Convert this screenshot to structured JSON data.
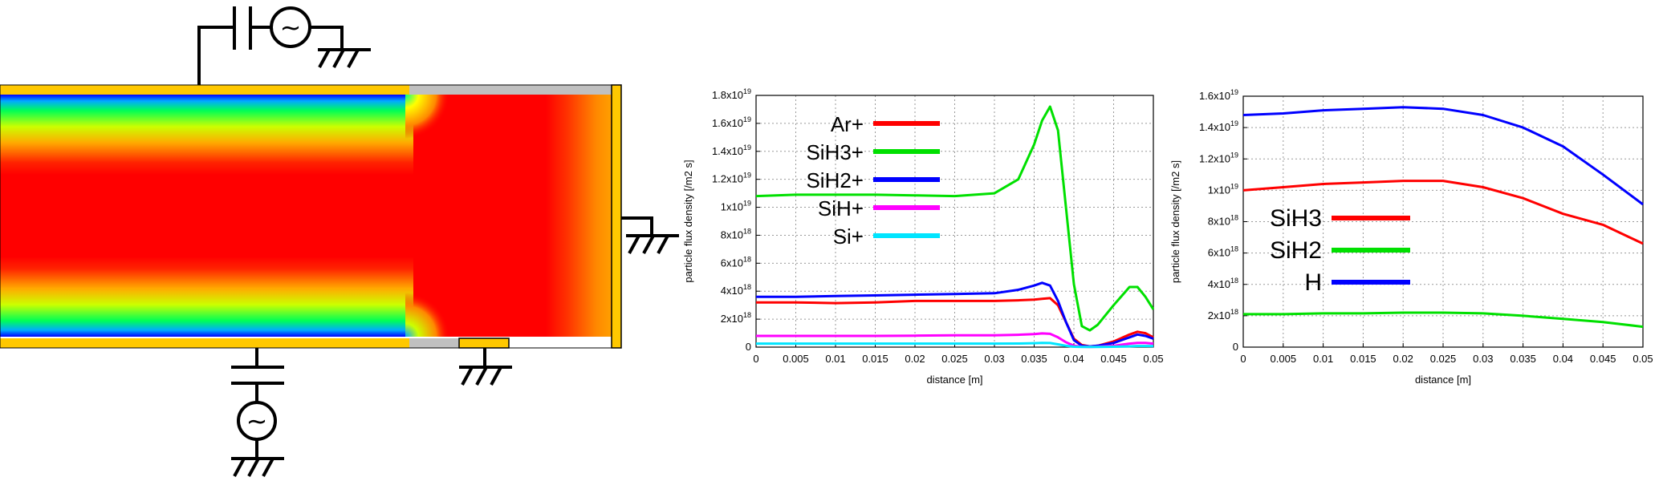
{
  "colors": {
    "electrode": "#FFC800",
    "insulator": "#C0C0C0",
    "plasma_core": "#FF0000",
    "wire": "#000000"
  },
  "schematic": {
    "components": [
      "capacitor",
      "ac-source",
      "ground-symbol"
    ],
    "source_glyph": "~"
  },
  "chart_data": [
    {
      "type": "line",
      "xlabel": "distance [m]",
      "ylabel": "particle flux density [/m2 s]",
      "xlim": [
        0,
        0.05
      ],
      "ylim": [
        0,
        1.8e+19
      ],
      "xticks": [
        "0",
        "0.005",
        "0.01",
        "0.015",
        "0.02",
        "0.025",
        "0.03",
        "0.035",
        "0.04",
        "0.045",
        "0.05"
      ],
      "yticks": [
        {
          "mant": "0",
          "exp": ""
        },
        {
          "mant": "2x10",
          "exp": "18"
        },
        {
          "mant": "4x10",
          "exp": "18"
        },
        {
          "mant": "6x10",
          "exp": "18"
        },
        {
          "mant": "8x10",
          "exp": "18"
        },
        {
          "mant": "1x10",
          "exp": "19"
        },
        {
          "mant": "1.2x10",
          "exp": "19"
        },
        {
          "mant": "1.4x10",
          "exp": "19"
        },
        {
          "mant": "1.6x10",
          "exp": "19"
        },
        {
          "mant": "1.8x10",
          "exp": "19"
        }
      ],
      "grid": true,
      "legend_position": "top-left",
      "x": [
        0,
        0.005,
        0.01,
        0.015,
        0.02,
        0.025,
        0.03,
        0.033,
        0.035,
        0.036,
        0.037,
        0.038,
        0.039,
        0.04,
        0.041,
        0.042,
        0.043,
        0.045,
        0.047,
        0.048,
        0.049,
        0.05
      ],
      "series": [
        {
          "name": "Ar+",
          "color": "#FF0000",
          "values": [
            3.2e+18,
            3.2e+18,
            3.15e+18,
            3.2e+18,
            3.3e+18,
            3.3e+18,
            3.3e+18,
            3.35e+18,
            3.4e+18,
            3.45e+18,
            3.5e+18,
            3e+18,
            1.8e+18,
            6e+17,
            1.5e+17,
            5e+16,
            1e+17,
            4e+17,
            9e+17,
            1.1e+18,
            1e+18,
            7e+17
          ]
        },
        {
          "name": "SiH3+",
          "color": "#00E000",
          "values": [
            1.08e+19,
            1.09e+19,
            1.09e+19,
            1.09e+19,
            1.085e+19,
            1.08e+19,
            1.1e+19,
            1.2e+19,
            1.45e+19,
            1.62e+19,
            1.72e+19,
            1.55e+19,
            1e+19,
            4.5e+18,
            1.5e+18,
            1.2e+18,
            1.6e+18,
            3e+18,
            4.3e+18,
            4.3e+18,
            3.6e+18,
            2.7e+18
          ]
        },
        {
          "name": "SiH2+",
          "color": "#0000FF",
          "values": [
            3.6e+18,
            3.6e+18,
            3.65e+18,
            3.7e+18,
            3.75e+18,
            3.8e+18,
            3.85e+18,
            4.1e+18,
            4.4e+18,
            4.6e+18,
            4.4e+18,
            3.3e+18,
            1.8e+18,
            5e+17,
            1e+17,
            5e+16,
            1e+17,
            3e+17,
            7e+17,
            9e+17,
            8e+17,
            6e+17
          ]
        },
        {
          "name": "SiH+",
          "color": "#FF00FF",
          "values": [
            8e+17,
            8e+17,
            8e+17,
            8e+17,
            8.2e+17,
            8.5e+17,
            8.5e+17,
            8.8e+17,
            9.3e+17,
            9.8e+17,
            9.5e+17,
            7e+17,
            3.5e+17,
            1e+17,
            3e+16,
            2e+16,
            3e+16,
            1e+17,
            2.5e+17,
            3e+17,
            3e+17,
            2.5e+17
          ]
        },
        {
          "name": "Si+",
          "color": "#00E5FF",
          "values": [
            2.5e+17,
            2.5e+17,
            2.5e+17,
            2.5e+17,
            2.5e+17,
            2.5e+17,
            2.5e+17,
            2.6e+17,
            2.8e+17,
            3e+17,
            2.9e+17,
            2e+17,
            1e+17,
            3e+16,
            1e+16,
            1e+16,
            1e+16,
            3e+16,
            6e+16,
            8e+16,
            8e+16,
            7e+16
          ]
        }
      ]
    },
    {
      "type": "line",
      "xlabel": "distance [m]",
      "ylabel": "particle flux density [/m2 s]",
      "xlim": [
        0,
        0.05
      ],
      "ylim": [
        0,
        1.6e+19
      ],
      "xticks": [
        "0",
        "0.005",
        "0.01",
        "0.015",
        "0.02",
        "0.025",
        "0.03",
        "0.035",
        "0.04",
        "0.045",
        "0.05"
      ],
      "yticks": [
        {
          "mant": "0",
          "exp": ""
        },
        {
          "mant": "2x10",
          "exp": "18"
        },
        {
          "mant": "4x10",
          "exp": "18"
        },
        {
          "mant": "6x10",
          "exp": "18"
        },
        {
          "mant": "8x10",
          "exp": "18"
        },
        {
          "mant": "1x10",
          "exp": "19"
        },
        {
          "mant": "1.2x10",
          "exp": "19"
        },
        {
          "mant": "1.4x10",
          "exp": "19"
        },
        {
          "mant": "1.6x10",
          "exp": "19"
        }
      ],
      "grid": true,
      "legend_position": "middle-left",
      "x": [
        0,
        0.005,
        0.01,
        0.015,
        0.02,
        0.025,
        0.03,
        0.035,
        0.04,
        0.045,
        0.05
      ],
      "series": [
        {
          "name": "SiH3",
          "color": "#FF0000",
          "values": [
            1e+19,
            1.02e+19,
            1.04e+19,
            1.05e+19,
            1.06e+19,
            1.06e+19,
            1.02e+19,
            9.5e+18,
            8.5e+18,
            7.8e+18,
            6.6e+18
          ]
        },
        {
          "name": "SiH2",
          "color": "#00E000",
          "values": [
            2.1e+18,
            2.1e+18,
            2.15e+18,
            2.15e+18,
            2.2e+18,
            2.2e+18,
            2.15e+18,
            2e+18,
            1.8e+18,
            1.6e+18,
            1.3e+18
          ]
        },
        {
          "name": "H",
          "color": "#0000FF",
          "values": [
            1.48e+19,
            1.49e+19,
            1.51e+19,
            1.52e+19,
            1.53e+19,
            1.52e+19,
            1.48e+19,
            1.4e+19,
            1.28e+19,
            1.1e+19,
            9.1e+18
          ]
        }
      ]
    }
  ]
}
